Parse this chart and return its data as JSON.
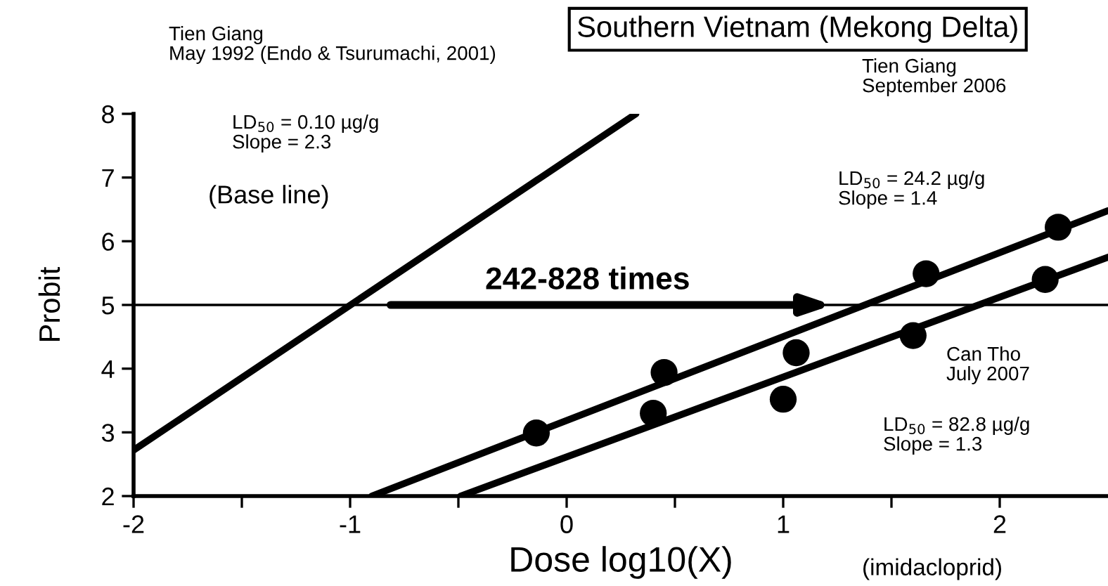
{
  "chart_data": {
    "type": "line",
    "title": "Southern Vietnam (Mekong Delta)",
    "xlabel": "Dose log10(X)",
    "ylabel": "Probit",
    "series": [
      {
        "color": "#000000",
        "marker": "none",
        "x": [
          -2,
          0.32
        ],
        "values": [
          2.72,
          8
        ]
      },
      {
        "color": "#000000",
        "marker": "none",
        "x": [
          -0.9,
          2.5
        ],
        "values": [
          2,
          6.48
        ]
      },
      {
        "color": "#000000",
        "marker": "none",
        "x": [
          -0.49,
          2.5
        ],
        "values": [
          2,
          5.75
        ]
      },
      {
        "type": "scatter",
        "color": "#000000",
        "marker": "circle",
        "x": [
          -0.14,
          0.45,
          1.06,
          1.66,
          2.27
        ],
        "values": [
          2.99,
          3.94,
          4.25,
          5.49,
          6.22
        ]
      },
      {
        "type": "scatter",
        "color": "#000000",
        "marker": "circle",
        "x": [
          0.4,
          1.0,
          1.6,
          2.21
        ],
        "values": [
          3.3,
          3.52,
          4.52,
          5.4
        ]
      }
    ],
    "xlim": [
      -2,
      2.5
    ],
    "ylim": [
      2,
      8
    ],
    "xticks": [
      -2,
      {
        "value": -1.5,
        "label": null
      },
      -1,
      {
        "value": -0.5,
        "label": null
      },
      0,
      {
        "value": 0.5,
        "label": null
      },
      1,
      {
        "value": 1.5,
        "label": null
      },
      2
    ],
    "yticks": [
      2,
      3,
      4,
      5,
      6,
      7,
      8
    ],
    "ref_lines": [
      {
        "axis": "y",
        "value": 5,
        "color": "#000000"
      }
    ],
    "annotations": [
      "Tien Giang\nMay 1992 (Endo & Tsurumachi, 2001)",
      "LD$_{50}$ = 0.10 µg/g\nSlope = 2.3",
      "(Base line)",
      "Tien Giang\nSeptember 2006",
      "LD$_{50}$ = 24.2 µg/g\nSlope = 1.4",
      "242-828 times",
      "Can Tho\nJuly 2007",
      "LD$_{50}$ = 82.8 µg/g\nSlope = 1.3",
      "(imidacloprid)"
    ],
    "grid": false
  }
}
